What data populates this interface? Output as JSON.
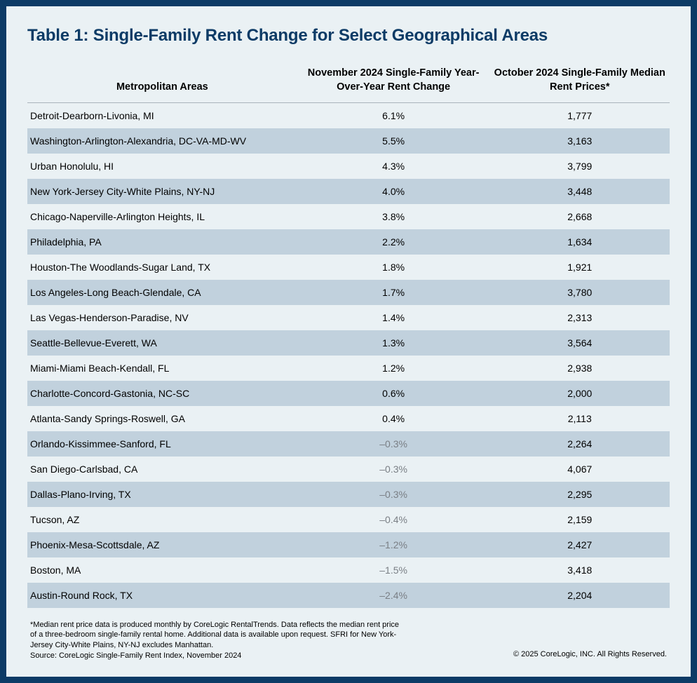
{
  "title": "Table 1: Single-Family Rent Change for Select Geographical Areas",
  "columns": {
    "c0": "Metropolitan Areas",
    "c1": "November 2024 Single-Family Year-Over-Year Rent Change",
    "c2": "October 2024 Single-Family Median Rent Prices*"
  },
  "rows": [
    {
      "area": "Detroit-Dearborn-Livonia, MI",
      "change": "6.1%",
      "price": "1,777",
      "neg": false
    },
    {
      "area": "Washington-Arlington-Alexandria, DC-VA-MD-WV",
      "change": "5.5%",
      "price": "3,163",
      "neg": false
    },
    {
      "area": "Urban Honolulu, HI",
      "change": "4.3%",
      "price": "3,799",
      "neg": false
    },
    {
      "area": "New York-Jersey City-White Plains, NY-NJ",
      "change": "4.0%",
      "price": "3,448",
      "neg": false
    },
    {
      "area": "Chicago-Naperville-Arlington Heights, IL",
      "change": "3.8%",
      "price": "2,668",
      "neg": false
    },
    {
      "area": "Philadelphia, PA",
      "change": "2.2%",
      "price": "1,634",
      "neg": false
    },
    {
      "area": "Houston-The Woodlands-Sugar Land, TX",
      "change": "1.8%",
      "price": "1,921",
      "neg": false
    },
    {
      "area": "Los Angeles-Long Beach-Glendale, CA",
      "change": "1.7%",
      "price": "3,780",
      "neg": false
    },
    {
      "area": "Las Vegas-Henderson-Paradise, NV",
      "change": "1.4%",
      "price": "2,313",
      "neg": false
    },
    {
      "area": "Seattle-Bellevue-Everett, WA",
      "change": "1.3%",
      "price": "3,564",
      "neg": false
    },
    {
      "area": "Miami-Miami Beach-Kendall, FL",
      "change": "1.2%",
      "price": "2,938",
      "neg": false
    },
    {
      "area": "Charlotte-Concord-Gastonia, NC-SC",
      "change": "0.6%",
      "price": "2,000",
      "neg": false
    },
    {
      "area": "Atlanta-Sandy Springs-Roswell, GA",
      "change": "0.4%",
      "price": "2,113",
      "neg": false
    },
    {
      "area": "Orlando-Kissimmee-Sanford, FL",
      "change": "–0.3%",
      "price": "2,264",
      "neg": true
    },
    {
      "area": "San Diego-Carlsbad, CA",
      "change": "–0.3%",
      "price": "4,067",
      "neg": true
    },
    {
      "area": "Dallas-Plano-Irving, TX",
      "change": "–0.3%",
      "price": "2,295",
      "neg": true
    },
    {
      "area": "Tucson, AZ",
      "change": "–0.4%",
      "price": "2,159",
      "neg": true
    },
    {
      "area": "Phoenix-Mesa-Scottsdale, AZ",
      "change": "–1.2%",
      "price": "2,427",
      "neg": true
    },
    {
      "area": "Boston, MA",
      "change": "–1.5%",
      "price": "3,418",
      "neg": true
    },
    {
      "area": "Austin-Round Rock, TX",
      "change": "–2.4%",
      "price": "2,204",
      "neg": true
    }
  ],
  "footnote": {
    "l1": "*Median rent price data is produced monthly by CoreLogic RentalTrends. Data reflects the median rent price",
    "l2": "of a three-bedroom single-family rental home. Additional data is available upon request. SFRI for New York-",
    "l3": "Jersey City-White Plains, NY-NJ excludes Manhattan.",
    "l4": "Source: CoreLogic Single-Family Rent Index, November 2024"
  },
  "copyright": "© 2025 CoreLogic, INC. All Rights Reserved.",
  "style": {
    "frame_border_color": "#0d3b66",
    "frame_bg": "#eaf1f4",
    "row_odd_bg": "#eaf1f4",
    "row_even_bg": "#c1d1dd",
    "title_color": "#0d3b66",
    "neg_text_color": "#7a7f85",
    "header_divider_color": "#a9b4bb",
    "title_fontsize": 24,
    "header_fontsize": 14.5,
    "cell_fontsize": 14,
    "footnote_fontsize": 11
  }
}
